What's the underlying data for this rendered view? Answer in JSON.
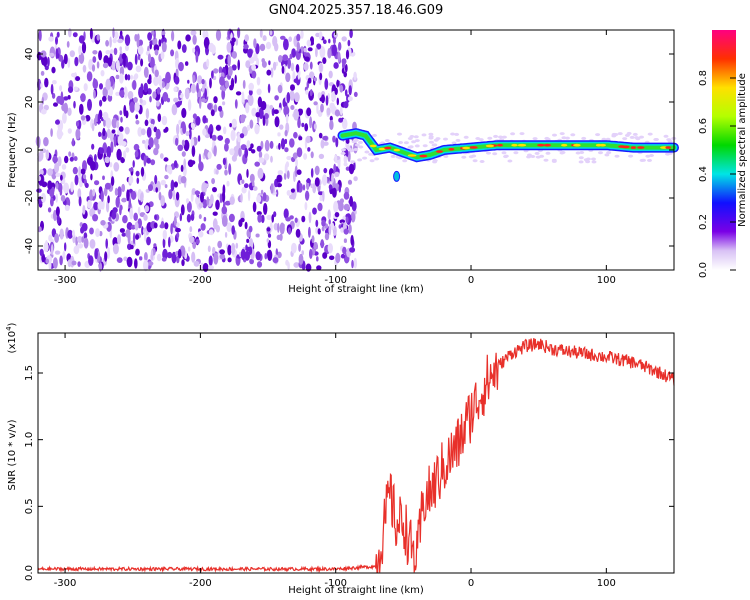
{
  "title": "GN04.2025.357.18.46.G09",
  "chart_data": [
    {
      "type": "heatmap",
      "name": "spectrogram",
      "xlabel": "Height of straight line (km)",
      "ylabel": "Frequency (Hz)",
      "xlim": [
        -320,
        150
      ],
      "ylim": [
        -50,
        50
      ],
      "xticks": [
        -300,
        -200,
        -100,
        0,
        100
      ],
      "yticks": [
        -40,
        -20,
        0,
        20,
        40
      ],
      "noise_region_km": [
        -320,
        -85
      ],
      "signal_track": {
        "x": [
          -95,
          -85,
          -78,
          -70,
          -60,
          -50,
          -40,
          -30,
          -20,
          0,
          20,
          50,
          80,
          100,
          120,
          150
        ],
        "y": [
          6,
          7,
          6,
          0,
          1,
          -1,
          -3,
          -2,
          0,
          1,
          2,
          2,
          2,
          2,
          1,
          1
        ]
      },
      "colorbar": {
        "label": "Normalized spectral amplitude",
        "ticks": [
          "0.0",
          "0.2",
          "0.4",
          "0.6",
          "0.8"
        ],
        "range": [
          0,
          1
        ]
      }
    },
    {
      "type": "line",
      "name": "snr",
      "xlabel": "Height of straight line (km)",
      "ylabel": "SNR (10 * v/v)",
      "y_multiplier_label": "(x10",
      "y_multiplier_exp": "4",
      "y_multiplier_close": ")",
      "xlim": [
        -320,
        150
      ],
      "ylim": [
        0,
        1.8
      ],
      "xticks": [
        -300,
        -200,
        -100,
        0,
        100
      ],
      "yticks": [
        "0.0",
        "0.5",
        "1.0",
        "1.5"
      ],
      "color": "#e8302a",
      "series": {
        "x": [
          -320,
          -200,
          -100,
          -70,
          -65,
          -60,
          -55,
          -50,
          -45,
          -40,
          -35,
          -30,
          -20,
          -10,
          0,
          10,
          20,
          30,
          40,
          50,
          60,
          80,
          100,
          120,
          140,
          150
        ],
        "y": [
          0.03,
          0.03,
          0.03,
          0.05,
          0.3,
          0.6,
          0.35,
          0.4,
          0.2,
          0.1,
          0.55,
          0.6,
          0.8,
          0.95,
          1.2,
          1.4,
          1.55,
          1.65,
          1.7,
          1.72,
          1.68,
          1.65,
          1.62,
          1.58,
          1.5,
          1.45
        ]
      }
    }
  ]
}
